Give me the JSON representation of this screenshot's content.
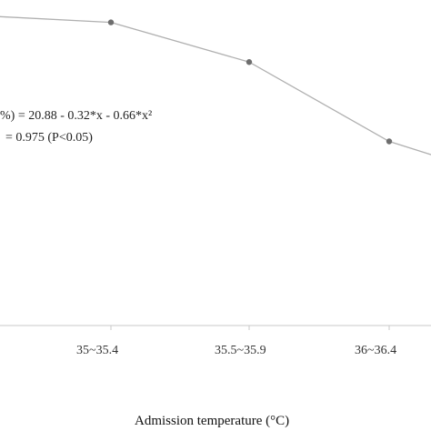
{
  "chart_data": {
    "type": "line",
    "x": [
      "",
      "35~35.4",
      "35.5~35.9",
      "36~36.4",
      ""
    ],
    "series": [
      {
        "values": [
          30.5,
          29.8,
          25.9,
          18.1,
          13.8
        ],
        "color": "#b0b0b0",
        "marker_color": "#6e6e6e"
      }
    ],
    "tick_labels": [
      "35~35.4",
      "35.5~35.9",
      "36~36.4"
    ],
    "xlabel": "Admission temperature (°C)",
    "annotations": [
      "%) = 20.88 - 0.32*x - 0.66*x²",
      "= 0.975 (P<0.05)"
    ],
    "ylim": [
      0,
      32
    ],
    "grid": false,
    "legend": "none"
  }
}
